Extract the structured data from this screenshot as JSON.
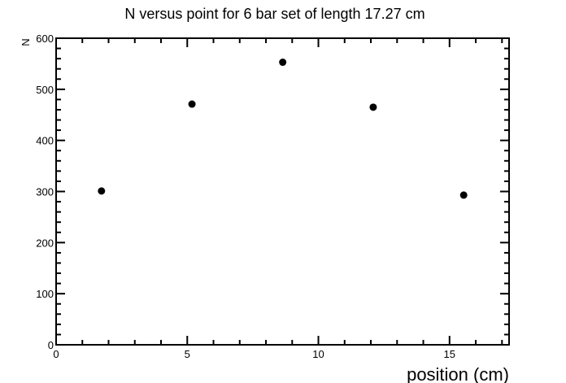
{
  "chart_data": {
    "type": "scatter",
    "title": "N versus point for 6 bar set of length 17.27 cm",
    "xlabel": "position (cm)",
    "ylabel": "N",
    "xlim": [
      0,
      17.27
    ],
    "ylim": [
      0,
      600
    ],
    "x_ticks": [
      0,
      5,
      10,
      15
    ],
    "y_ticks": [
      0,
      100,
      200,
      300,
      400,
      500,
      600
    ],
    "x_tick_labels": [
      "0",
      "5",
      "10",
      "15"
    ],
    "y_tick_labels": [
      "0",
      "100",
      "200",
      "300",
      "400",
      "500",
      "600"
    ],
    "grid": false,
    "legend": "none",
    "marker_color": "#000000",
    "series": [
      {
        "points": [
          {
            "x": 1.73,
            "y": 301
          },
          {
            "x": 5.18,
            "y": 471
          },
          {
            "x": 8.64,
            "y": 553
          },
          {
            "x": 12.09,
            "y": 465
          },
          {
            "x": 15.54,
            "y": 293
          }
        ]
      }
    ]
  }
}
